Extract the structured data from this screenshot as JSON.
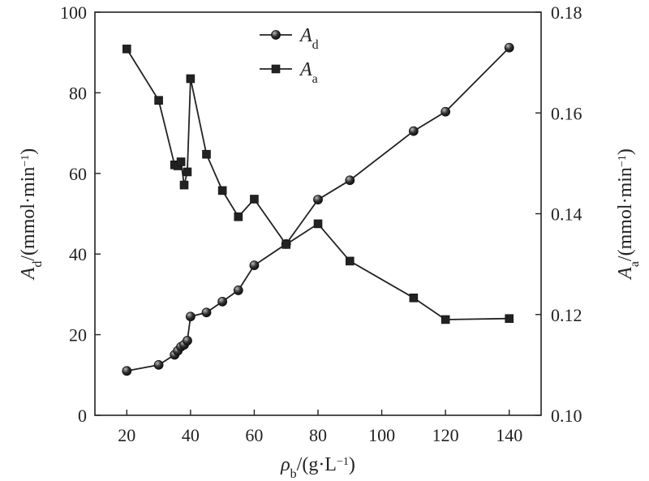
{
  "chart_data": {
    "type": "line",
    "x_axis": {
      "label": {
        "main": "ρ",
        "sub": "b",
        "rest": "/(g·L",
        "sup": "−1",
        "end": ")"
      },
      "range": [
        10,
        150
      ],
      "ticks": [
        20,
        40,
        60,
        80,
        100,
        120,
        140
      ],
      "tick_labels": [
        "20",
        "40",
        "60",
        "80",
        "100",
        "120",
        "140"
      ]
    },
    "y_left": {
      "label": {
        "main": "A",
        "sub": "d",
        "rest": "/(mmol·min",
        "sup": "−1",
        "end": ")"
      },
      "range": [
        0,
        100
      ],
      "ticks": [
        0,
        20,
        40,
        60,
        80,
        100
      ],
      "tick_labels": [
        "0",
        "20",
        "40",
        "60",
        "80",
        "100"
      ]
    },
    "y_right": {
      "label": {
        "main": "A",
        "sub": "a",
        "rest": "/(mmol·min",
        "sup": "−1",
        "end": ")"
      },
      "range": [
        0.1,
        0.18
      ],
      "ticks": [
        0.1,
        0.12,
        0.14,
        0.16,
        0.18
      ],
      "tick_labels": [
        "0.10",
        "0.12",
        "0.14",
        "0.16",
        "0.18"
      ]
    },
    "series": [
      {
        "name": {
          "main": "A",
          "sub": "d"
        },
        "axis": "left",
        "marker": "circle",
        "x": [
          20,
          30,
          35,
          36,
          37,
          38,
          39,
          40,
          45,
          50,
          55,
          60,
          70,
          80,
          90,
          110,
          120,
          140
        ],
        "y": [
          11.0,
          12.5,
          15.0,
          16.0,
          17.0,
          17.5,
          18.5,
          24.5,
          25.5,
          28.2,
          31.0,
          37.2,
          42.5,
          53.5,
          58.3,
          70.5,
          75.3,
          91.2
        ]
      },
      {
        "name": {
          "main": "A",
          "sub": "a"
        },
        "axis": "right",
        "marker": "square",
        "x": [
          20,
          30,
          35,
          36,
          37,
          38,
          39,
          40,
          45,
          50,
          55,
          60,
          70,
          80,
          90,
          110,
          120,
          140
        ],
        "y": [
          0.1727,
          0.1625,
          0.1497,
          0.1495,
          0.1503,
          0.1457,
          0.1483,
          0.1668,
          0.1518,
          0.1446,
          0.1394,
          0.1429,
          0.1339,
          0.138,
          0.1306,
          0.1233,
          0.119,
          0.1192
        ]
      }
    ],
    "legend": {
      "position": "top-center"
    },
    "grid": false
  }
}
